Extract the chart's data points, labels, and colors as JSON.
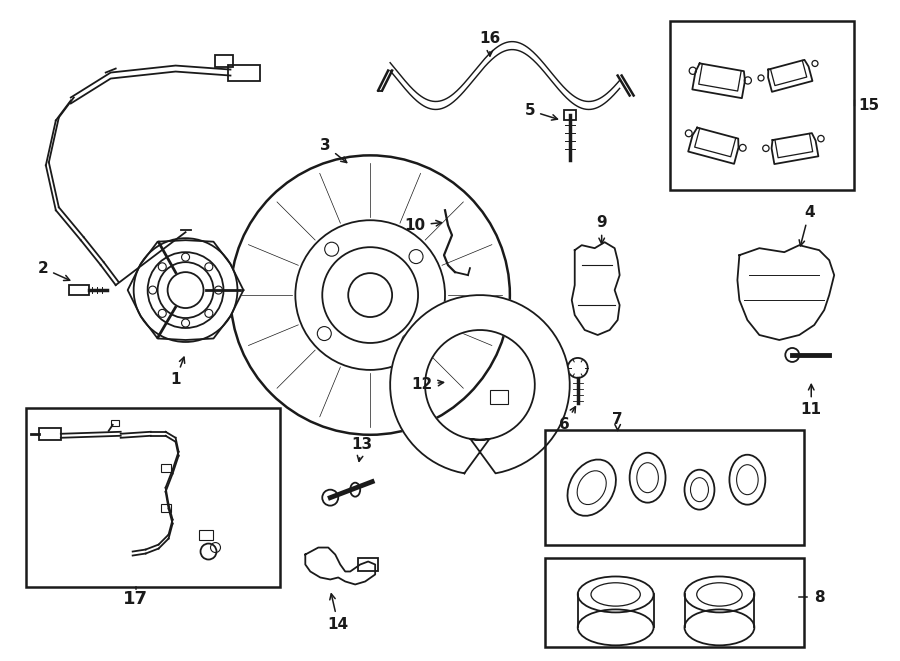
{
  "background_color": "#ffffff",
  "line_color": "#1a1a1a",
  "fig_width": 9.0,
  "fig_height": 6.61,
  "dpi": 100,
  "lw": 1.3
}
